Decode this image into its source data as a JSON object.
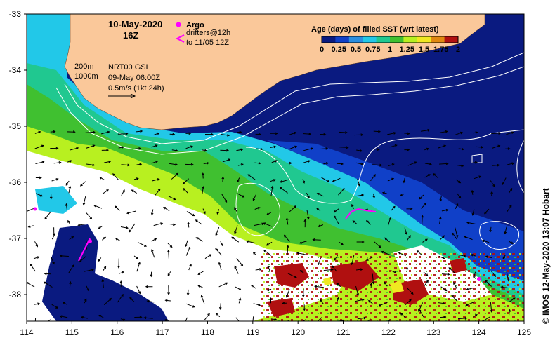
{
  "map": {
    "title_date": "10-May-2020",
    "title_hour": "16Z",
    "argo_label": "Argo",
    "drifters_label": "drifters@12h",
    "drifters_period": "to 11/05 12Z",
    "isobath_200": "200m",
    "isobath_1000": "1000m",
    "current_source": "NRT00 GSL",
    "current_time": "09-May 06:00Z",
    "vector_scale": "0.5m/s (1kt 24h)",
    "credit": "© IMOS 12-May-2020 13:07 Hobart",
    "x_ticks": [
      "114",
      "115",
      "116",
      "117",
      "118",
      "119",
      "120",
      "121",
      "122",
      "123",
      "124",
      "125"
    ],
    "y_ticks": [
      "-33",
      "-34",
      "-35",
      "-36",
      "-37",
      "-38"
    ],
    "legend": {
      "title": "Age (days) of filled SST (wrt latest)",
      "ticks": [
        "0",
        "0.25",
        "0.5",
        "0.75",
        "1",
        "1.25",
        "1.5",
        "1.75",
        "2"
      ],
      "colors": [
        "#0a1a80",
        "#1040c8",
        "#2a8ee0",
        "#22c8e8",
        "#20c890",
        "#40c030",
        "#b8f020",
        "#f0e820",
        "#e08810",
        "#b01010"
      ]
    },
    "colors": {
      "land": "#fac89a",
      "deep": "#0a1a80",
      "argo": "#ff00ff",
      "drifter": "#ff00ff"
    }
  }
}
